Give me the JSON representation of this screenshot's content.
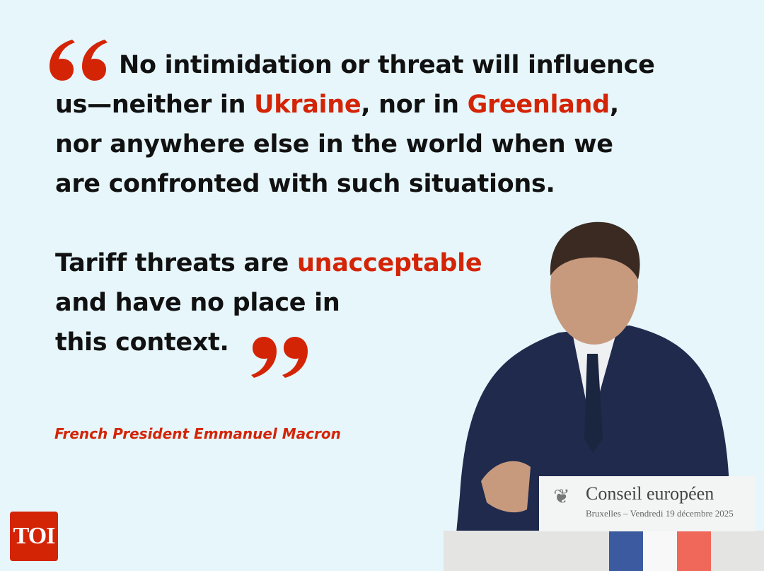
{
  "quote": {
    "part1": {
      "line1": "No intimidation or threat will influence",
      "line2_a": "us—neither in ",
      "line2_b": "Ukraine",
      "line2_c": ", nor in ",
      "line2_d": "Greenland",
      "line2_e": ",",
      "line3": "nor anywhere else in the world when we",
      "line4": "are confronted with such situations."
    },
    "part2": {
      "line1_a": "Tariff threats are ",
      "line1_b": "unacceptable",
      "line2": "and have no place in",
      "line3": "this context."
    }
  },
  "attribution": "French President Emmanuel Macron",
  "logo": "TOI",
  "podium_sign": {
    "title": "Conseil européen",
    "subtitle": "Bruxelles – Vendredi 19 décembre 2025"
  },
  "colors": {
    "background": "#e6f6fb",
    "accent": "#d42406",
    "text": "#111111"
  }
}
